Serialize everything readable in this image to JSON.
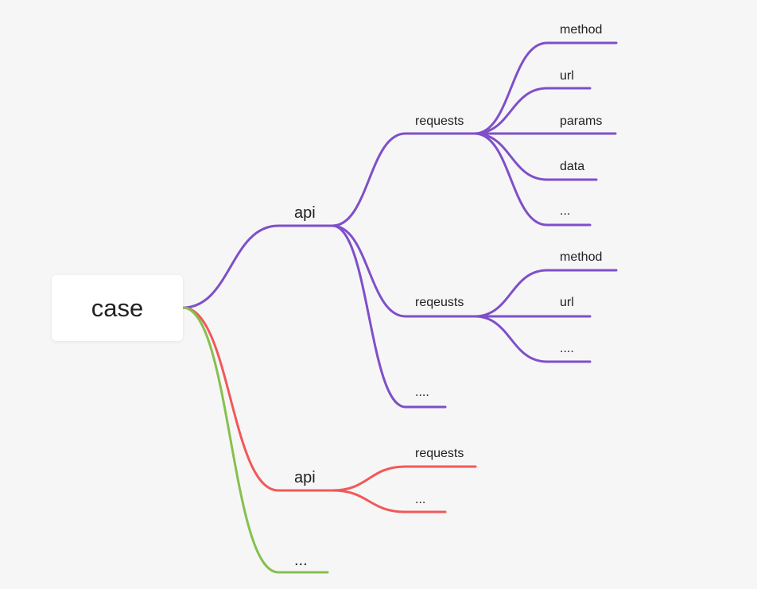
{
  "root": {
    "label": "case"
  },
  "colors": {
    "purple": "#7f4fc9",
    "red": "#f25858",
    "green": "#86c04d"
  },
  "branches": [
    {
      "label": "api",
      "color": "purple",
      "children": [
        {
          "label": "requests",
          "children": [
            "method",
            "url",
            "params",
            "data",
            "..."
          ]
        },
        {
          "label": "reqeusts",
          "children": [
            "method",
            "url",
            "...."
          ]
        },
        {
          "label": "....",
          "children": []
        }
      ]
    },
    {
      "label": "api",
      "color": "red",
      "children": [
        {
          "label": "requests",
          "children": []
        },
        {
          "label": "...",
          "children": []
        }
      ]
    },
    {
      "label": "...",
      "color": "green",
      "children": []
    }
  ]
}
